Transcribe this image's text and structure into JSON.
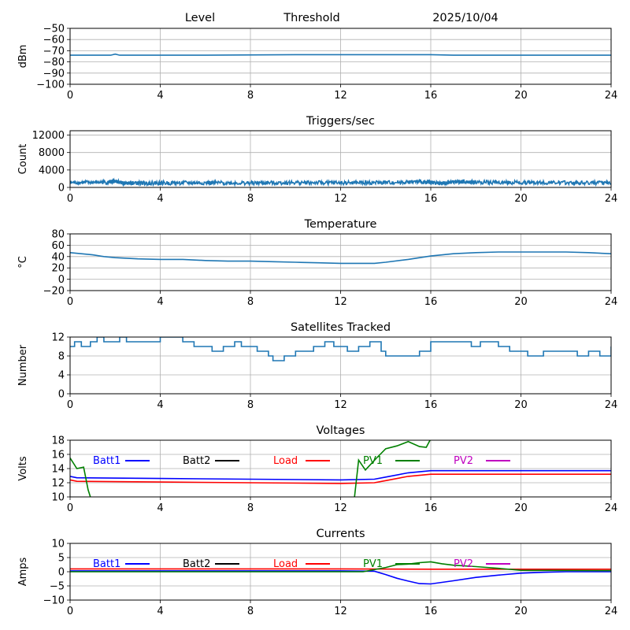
{
  "header": {
    "level": "Level",
    "threshold": "Threshold",
    "date": "2025/10/04"
  },
  "chart_data": [
    {
      "type": "line",
      "title": "",
      "ylabel": "dBm",
      "xlim": [
        0,
        24
      ],
      "xticks": [
        0,
        4,
        8,
        12,
        16,
        20,
        24
      ],
      "ylim": [
        -100,
        -50
      ],
      "yticks": [
        -100,
        -90,
        -80,
        -70,
        -60,
        -50
      ],
      "grid": true,
      "series": [
        {
          "color": "#1f77b4",
          "x": [
            0,
            1.8,
            2.0,
            2.2,
            6,
            10,
            14,
            16,
            17,
            20,
            24
          ],
          "y": [
            -74,
            -74,
            -73,
            -74,
            -74,
            -73.5,
            -73.5,
            -73.5,
            -74,
            -74,
            -74
          ]
        }
      ]
    },
    {
      "type": "line",
      "title": "Triggers/sec",
      "ylabel": "Count",
      "xlim": [
        0,
        24
      ],
      "xticks": [
        0,
        4,
        8,
        12,
        16,
        20,
        24
      ],
      "ylim": [
        0,
        13000
      ],
      "yticks": [
        0,
        4000,
        8000,
        12000
      ],
      "grid": true,
      "series": [
        {
          "color": "#1f77b4",
          "noisy": true,
          "x": [
            0,
            1.7,
            2.0,
            2.4,
            2.8,
            4,
            6,
            8,
            10,
            12,
            14,
            15.8,
            16.5,
            17,
            18,
            20,
            22,
            24
          ],
          "y": [
            1100,
            1200,
            1500,
            900,
            1000,
            1000,
            1050,
            1000,
            1100,
            1050,
            1100,
            1300,
            900,
            1300,
            1200,
            1100,
            1100,
            1000
          ]
        }
      ]
    },
    {
      "type": "line",
      "title": "Temperature",
      "ylabel": "°C",
      "xlim": [
        0,
        24
      ],
      "xticks": [
        0,
        4,
        8,
        12,
        16,
        20,
        24
      ],
      "ylim": [
        -20,
        80
      ],
      "yticks": [
        -20,
        0,
        20,
        40,
        60,
        80
      ],
      "grid": true,
      "series": [
        {
          "color": "#1f77b4",
          "x": [
            0,
            0.5,
            1,
            1.5,
            2,
            3,
            4,
            5,
            6,
            7,
            8,
            9,
            10,
            11,
            12,
            13,
            13.5,
            14,
            15,
            16,
            17,
            18,
            19,
            20,
            21,
            22,
            23,
            24
          ],
          "y": [
            47,
            45,
            43,
            40,
            38,
            36,
            35,
            35,
            33,
            32,
            32,
            31,
            30,
            29,
            28,
            28,
            28,
            30,
            35,
            41,
            45,
            47,
            48,
            48,
            48,
            48,
            47,
            45
          ]
        }
      ]
    },
    {
      "type": "line",
      "title": "Satellites Tracked",
      "ylabel": "Number",
      "xlim": [
        0,
        24
      ],
      "xticks": [
        0,
        4,
        8,
        12,
        16,
        20,
        24
      ],
      "ylim": [
        0,
        12
      ],
      "yticks": [
        0,
        4,
        8,
        12
      ],
      "grid": true,
      "series": [
        {
          "color": "#1f77b4",
          "step": true,
          "x": [
            0,
            0.2,
            0.5,
            0.9,
            1.2,
            1.5,
            2.2,
            2.5,
            3.5,
            4,
            5,
            5.5,
            6.3,
            6.8,
            7.3,
            7.6,
            8.3,
            8.8,
            9,
            9.5,
            10,
            10.8,
            11.3,
            11.7,
            12.3,
            12.8,
            13.3,
            13.8,
            14,
            15,
            15.5,
            16,
            17,
            17.8,
            18.2,
            19,
            19.5,
            20.3,
            21,
            22,
            22.5,
            23,
            23.5,
            24
          ],
          "y": [
            10,
            11,
            10,
            11,
            12,
            11,
            12,
            11,
            11,
            12,
            11,
            10,
            9,
            10,
            11,
            10,
            9,
            8,
            7,
            8,
            9,
            10,
            11,
            10,
            9,
            10,
            11,
            9,
            8,
            8,
            9,
            11,
            11,
            10,
            11,
            10,
            9,
            8,
            9,
            9,
            8,
            9,
            8,
            10
          ]
        }
      ]
    },
    {
      "type": "line",
      "title": "Voltages",
      "ylabel": "Volts",
      "xlim": [
        0,
        24
      ],
      "xticks": [
        0,
        4,
        8,
        12,
        16,
        20,
        24
      ],
      "ylim": [
        10,
        18
      ],
      "yticks": [
        10,
        12,
        14,
        16,
        18
      ],
      "grid": true,
      "legend": [
        "Batt1",
        "Batt2",
        "Load",
        "PV1",
        "PV2"
      ],
      "series": [
        {
          "name": "Batt1",
          "color": "#0000ff",
          "x": [
            0,
            0.3,
            4,
            8,
            12,
            13.5,
            14,
            15,
            16,
            20,
            24
          ],
          "y": [
            12.9,
            12.7,
            12.6,
            12.5,
            12.4,
            12.5,
            12.8,
            13.4,
            13.7,
            13.7,
            13.7
          ]
        },
        {
          "name": "Batt2",
          "color": "#000000",
          "x": [],
          "y": []
        },
        {
          "name": "Load",
          "color": "#ff0000",
          "x": [
            0,
            0.3,
            4,
            8,
            12,
            13.5,
            14,
            15,
            16,
            20,
            24
          ],
          "y": [
            12.4,
            12.2,
            12.1,
            12.0,
            11.9,
            12.0,
            12.3,
            12.9,
            13.2,
            13.2,
            13.2
          ]
        },
        {
          "name": "PV1",
          "color": "#008000",
          "x": [
            0,
            0.3,
            0.6,
            0.8,
            0.95,
            12.6,
            12.8,
            13.1,
            13.6,
            14,
            14.5,
            15,
            15.5,
            15.8,
            16
          ],
          "y": [
            15.5,
            14,
            14.2,
            11,
            9.5,
            9.5,
            15.2,
            13.8,
            15.5,
            16.8,
            17.2,
            17.8,
            17.1,
            17.0,
            18.2
          ]
        },
        {
          "name": "PV2",
          "color": "#bf00bf",
          "x": [],
          "y": []
        }
      ]
    },
    {
      "type": "line",
      "title": "Currents",
      "ylabel": "Amps",
      "xlim": [
        0,
        24
      ],
      "xticks": [
        0,
        4,
        8,
        12,
        16,
        20,
        24
      ],
      "ylim": [
        -10,
        10
      ],
      "yticks": [
        -10,
        -5,
        0,
        5,
        10
      ],
      "grid": true,
      "legend": [
        "Batt1",
        "Batt2",
        "Load",
        "PV1",
        "PV2"
      ],
      "series": [
        {
          "name": "Batt1",
          "color": "#0000ff",
          "x": [
            0,
            4,
            8,
            12,
            13.5,
            14,
            14.5,
            15,
            15.5,
            16,
            17,
            18,
            19,
            20,
            21,
            22,
            24
          ],
          "y": [
            0.3,
            0.3,
            0.3,
            0.3,
            0.2,
            -1,
            -2.3,
            -3.3,
            -4.2,
            -4.3,
            -3.2,
            -2,
            -1.2,
            -0.5,
            -0.2,
            0,
            0
          ]
        },
        {
          "name": "Batt2",
          "color": "#000000",
          "x": [],
          "y": []
        },
        {
          "name": "Load",
          "color": "#ff0000",
          "x": [
            0,
            4,
            8,
            12,
            16,
            20,
            24
          ],
          "y": [
            1.0,
            1.0,
            1.0,
            1.0,
            0.9,
            0.9,
            0.9
          ]
        },
        {
          "name": "PV1",
          "color": "#008000",
          "x": [
            0,
            13,
            14,
            14.5,
            15,
            15.5,
            16,
            16.5,
            17,
            18,
            19,
            20,
            24
          ],
          "y": [
            0,
            0,
            1.5,
            2.5,
            2.7,
            3.2,
            3.5,
            2.8,
            2.3,
            1.8,
            1.2,
            0.5,
            0.4
          ]
        },
        {
          "name": "PV2",
          "color": "#bf00bf",
          "x": [],
          "y": []
        }
      ]
    }
  ]
}
